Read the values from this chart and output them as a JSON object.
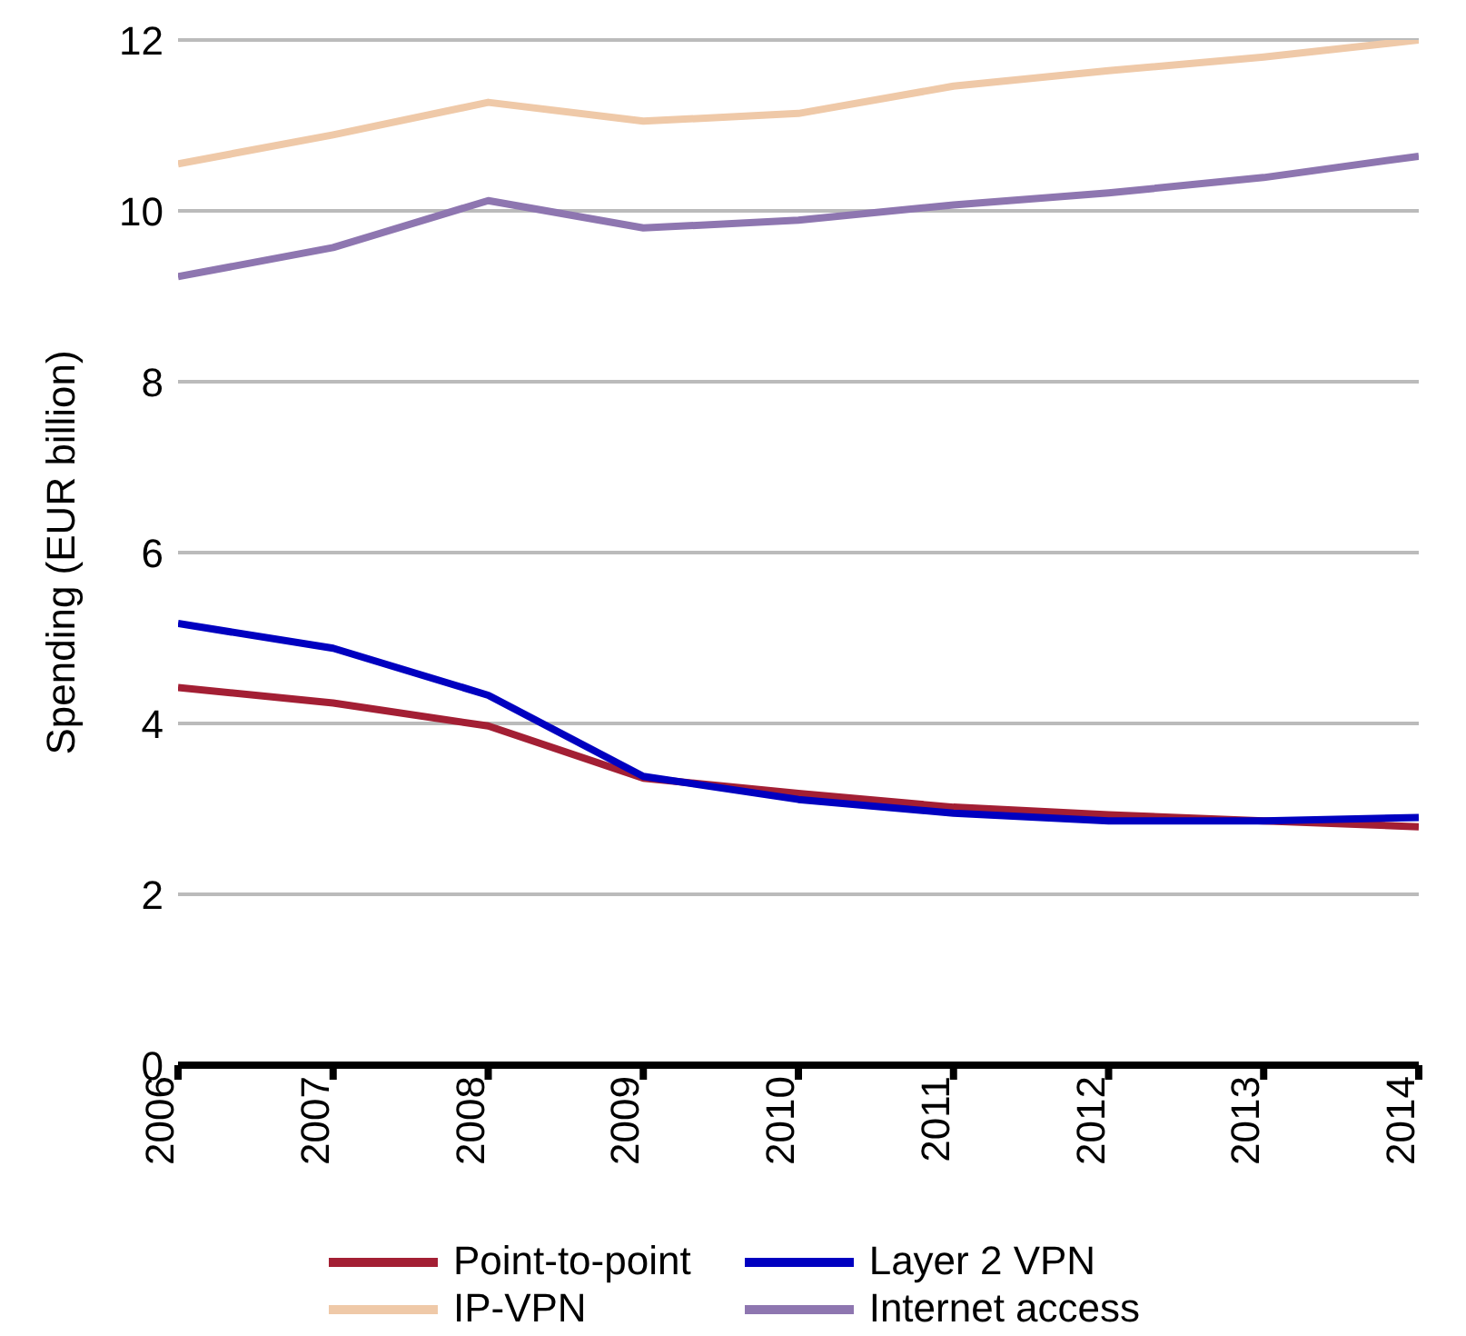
{
  "chart_data": {
    "type": "line",
    "ylabel": "Spending (EUR billion)",
    "categories": [
      "2006",
      "2007",
      "2008",
      "2009",
      "2010",
      "2011",
      "2012",
      "2013",
      "2014"
    ],
    "series": [
      {
        "name": "Point-to-point",
        "color": "#a31f34",
        "values": [
          4.42,
          4.24,
          3.97,
          3.36,
          3.18,
          3.02,
          2.93,
          2.86,
          2.79
        ]
      },
      {
        "name": "Layer 2 VPN",
        "color": "#0000c0",
        "values": [
          5.17,
          4.88,
          4.33,
          3.38,
          3.11,
          2.95,
          2.86,
          2.86,
          2.9
        ]
      },
      {
        "name": "IP-VPN",
        "color": "#efc9a8",
        "values": [
          10.55,
          10.89,
          11.27,
          11.05,
          11.14,
          11.46,
          11.64,
          11.8,
          12.0
        ]
      },
      {
        "name": "Internet access",
        "color": "#8e76b0",
        "values": [
          9.23,
          9.57,
          10.12,
          9.8,
          9.89,
          10.07,
          10.21,
          10.39,
          10.64
        ]
      }
    ],
    "ylim": [
      0,
      12
    ],
    "yticks": [
      0,
      2,
      4,
      6,
      8,
      10,
      12
    ],
    "grid": "y",
    "legend": "bottom",
    "marker": "none"
  }
}
